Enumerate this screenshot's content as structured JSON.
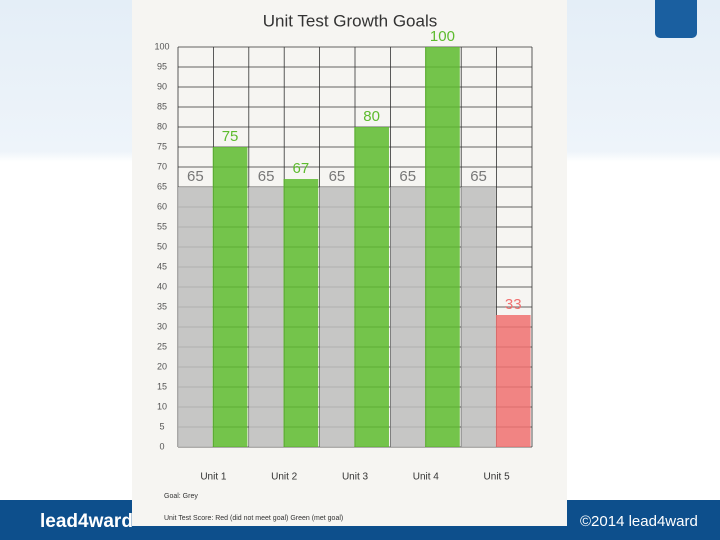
{
  "chart_data": {
    "type": "bar",
    "title": "Unit Test Growth Goals",
    "categories": [
      "Unit 1",
      "Unit 2",
      "Unit 3",
      "Unit 4",
      "Unit 5"
    ],
    "series": [
      {
        "name": "Goal: Grey",
        "color": "#bdbdbd",
        "values": [
          65,
          65,
          65,
          65,
          65
        ]
      },
      {
        "name": "Unit Test Score: Red (did not meet goal)  Green (met goal)",
        "color": "#5dbb2e",
        "colors": [
          "#5dbb2e",
          "#5dbb2e",
          "#5dbb2e",
          "#5dbb2e",
          "#f07070"
        ],
        "values": [
          75,
          67,
          80,
          100,
          33
        ]
      }
    ],
    "ylim": [
      0,
      100
    ],
    "yticks": [
      0,
      5,
      10,
      15,
      20,
      25,
      30,
      35,
      40,
      45,
      50,
      55,
      60,
      65,
      70,
      75,
      80,
      85,
      90,
      95,
      100
    ],
    "grid": true
  },
  "footer": {
    "logo": "lead4ward",
    "copyright": "©2014 lead4ward"
  }
}
